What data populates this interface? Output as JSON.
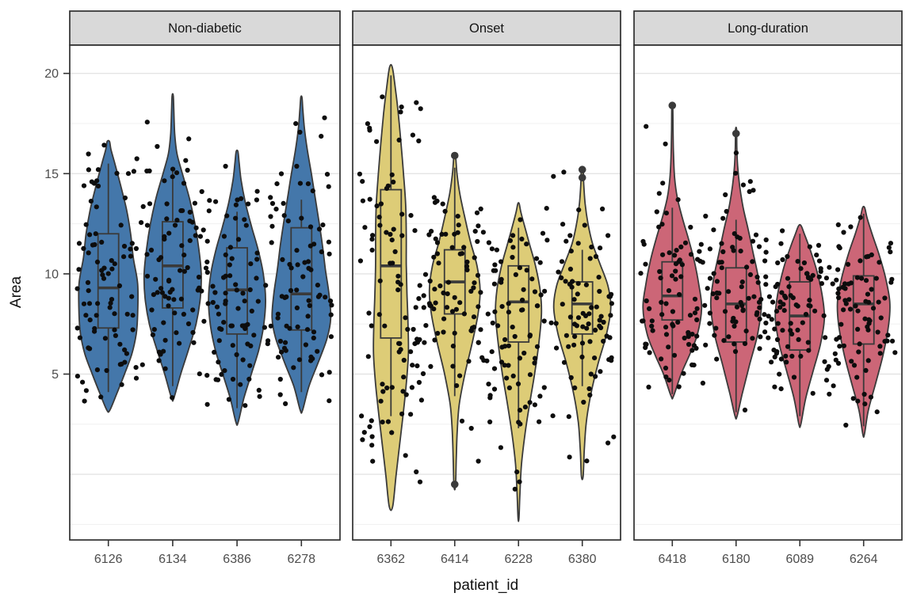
{
  "chart_data": {
    "type": "violin",
    "xlabel": "patient_id",
    "ylabel": "Area",
    "y_ticks": [
      20,
      15,
      10,
      5
    ],
    "y_grid_major": [
      0,
      5,
      10,
      15,
      20
    ],
    "y_grid_minor": [
      -2.5,
      2.5,
      7.5,
      12.5,
      17.5
    ],
    "legend": "none",
    "grid": "on",
    "facets": [
      {
        "label": "Non-diabetic",
        "fill": "#4477AA",
        "patients": [
          {
            "id": "6126",
            "seed": 11,
            "n_points": 85,
            "halfwidth": 37,
            "box": {
              "q1": 7.3,
              "median": 9.3,
              "q3": 12.0,
              "whisker_low": 4.1,
              "whisker_high": 15.5
            },
            "outliers": [],
            "violin": [
              [
                3.2,
                0.05
              ],
              [
                4.0,
                0.28
              ],
              [
                5.0,
                0.55
              ],
              [
                6.0,
                0.8
              ],
              [
                7.0,
                0.95
              ],
              [
                8.0,
                1.0
              ],
              [
                9.5,
                1.0
              ],
              [
                10.8,
                0.85
              ],
              [
                12.0,
                0.76
              ],
              [
                13.2,
                0.62
              ],
              [
                14.4,
                0.42
              ],
              [
                15.5,
                0.22
              ],
              [
                16.2,
                0.09
              ],
              [
                16.6,
                0.04
              ]
            ]
          },
          {
            "id": "6134",
            "seed": 22,
            "n_points": 85,
            "halfwidth": 36,
            "box": {
              "q1": 8.3,
              "median": 10.4,
              "q3": 12.6,
              "whisker_low": 4.4,
              "whisker_high": 15.2
            },
            "outliers": [],
            "violin": [
              [
                3.8,
                0.04
              ],
              [
                5.0,
                0.28
              ],
              [
                6.2,
                0.55
              ],
              [
                7.5,
                0.82
              ],
              [
                8.8,
                0.97
              ],
              [
                10.0,
                1.0
              ],
              [
                11.2,
                0.92
              ],
              [
                12.5,
                0.78
              ],
              [
                13.8,
                0.58
              ],
              [
                15.0,
                0.34
              ],
              [
                16.0,
                0.15
              ],
              [
                17.0,
                0.07
              ],
              [
                18.2,
                0.04
              ],
              [
                18.9,
                0.02
              ]
            ]
          },
          {
            "id": "6386",
            "seed": 33,
            "n_points": 85,
            "halfwidth": 36,
            "box": {
              "q1": 7.0,
              "median": 9.2,
              "q3": 11.3,
              "whisker_low": 3.3,
              "whisker_high": 13.1
            },
            "outliers": [],
            "violin": [
              [
                2.6,
                0.04
              ],
              [
                3.8,
                0.24
              ],
              [
                5.0,
                0.5
              ],
              [
                6.2,
                0.76
              ],
              [
                7.4,
                0.93
              ],
              [
                8.7,
                1.0
              ],
              [
                10.0,
                0.92
              ],
              [
                11.2,
                0.74
              ],
              [
                12.3,
                0.52
              ],
              [
                13.5,
                0.3
              ],
              [
                14.7,
                0.14
              ],
              [
                15.6,
                0.07
              ],
              [
                16.1,
                0.03
              ]
            ]
          },
          {
            "id": "6278",
            "seed": 44,
            "n_points": 85,
            "halfwidth": 37,
            "box": {
              "q1": 7.2,
              "median": 9.0,
              "q3": 12.3,
              "whisker_low": 4.1,
              "whisker_high": 13.7
            },
            "outliers": [],
            "violin": [
              [
                3.2,
                0.04
              ],
              [
                4.4,
                0.26
              ],
              [
                5.6,
                0.58
              ],
              [
                6.8,
                0.88
              ],
              [
                7.8,
                1.0
              ],
              [
                9.0,
                0.94
              ],
              [
                10.2,
                0.82
              ],
              [
                11.4,
                0.72
              ],
              [
                12.6,
                0.6
              ],
              [
                13.8,
                0.47
              ],
              [
                15.0,
                0.34
              ],
              [
                16.2,
                0.2
              ],
              [
                17.3,
                0.1
              ],
              [
                18.2,
                0.05
              ],
              [
                18.8,
                0.02
              ]
            ]
          }
        ]
      },
      {
        "label": "Onset",
        "fill": "#DDCC77",
        "patients": [
          {
            "id": "6362",
            "seed": 55,
            "n_points": 95,
            "halfwidth": 22,
            "box": {
              "q1": 6.8,
              "median": 10.4,
              "q3": 14.2,
              "whisker_low": 2.9,
              "whisker_high": 19.9
            },
            "outliers": [],
            "violin": [
              [
                -1.6,
                0.1
              ],
              [
                0.0,
                0.3
              ],
              [
                1.5,
                0.5
              ],
              [
                3.0,
                0.7
              ],
              [
                4.5,
                0.88
              ],
              [
                6.0,
                1.0
              ],
              [
                7.5,
                0.98
              ],
              [
                9.0,
                0.92
              ],
              [
                10.5,
                0.88
              ],
              [
                12.0,
                0.88
              ],
              [
                13.5,
                0.84
              ],
              [
                15.0,
                0.72
              ],
              [
                16.5,
                0.58
              ],
              [
                18.0,
                0.42
              ],
              [
                19.2,
                0.26
              ],
              [
                20.3,
                0.08
              ]
            ]
          },
          {
            "id": "6414",
            "seed": 66,
            "n_points": 85,
            "halfwidth": 32,
            "box": {
              "q1": 8.0,
              "median": 9.6,
              "q3": 11.2,
              "whisker_low": 3.9,
              "whisker_high": 15.3
            },
            "outliers": [
              15.9,
              -0.5
            ],
            "violin": [
              [
                -0.6,
                0.03
              ],
              [
                0.8,
                0.06
              ],
              [
                2.2,
                0.1
              ],
              [
                3.5,
                0.18
              ],
              [
                5.0,
                0.4
              ],
              [
                6.5,
                0.68
              ],
              [
                8.0,
                0.92
              ],
              [
                9.2,
                1.0
              ],
              [
                10.4,
                0.88
              ],
              [
                11.6,
                0.62
              ],
              [
                12.8,
                0.4
              ],
              [
                14.0,
                0.2
              ],
              [
                15.0,
                0.09
              ],
              [
                15.9,
                0.03
              ]
            ]
          },
          {
            "id": "6228",
            "seed": 77,
            "n_points": 85,
            "halfwidth": 29,
            "box": {
              "q1": 6.6,
              "median": 8.6,
              "q3": 10.4,
              "whisker_low": 2.3,
              "whisker_high": 12.3
            },
            "outliers": [],
            "violin": [
              [
                -2.2,
                0.02
              ],
              [
                -1.0,
                0.06
              ],
              [
                0.5,
                0.13
              ],
              [
                2.0,
                0.28
              ],
              [
                3.5,
                0.48
              ],
              [
                5.0,
                0.7
              ],
              [
                6.5,
                0.88
              ],
              [
                8.0,
                1.0
              ],
              [
                9.2,
                0.94
              ],
              [
                10.4,
                0.74
              ],
              [
                11.4,
                0.5
              ],
              [
                12.4,
                0.26
              ],
              [
                13.1,
                0.1
              ],
              [
                13.5,
                0.03
              ]
            ]
          },
          {
            "id": "6380",
            "seed": 88,
            "n_points": 85,
            "halfwidth": 36,
            "box": {
              "q1": 7.0,
              "median": 8.5,
              "q3": 9.6,
              "whisker_low": 4.4,
              "whisker_high": 11.2
            },
            "outliers": [
              14.8,
              15.2
            ],
            "violin": [
              [
                -0.1,
                0.03
              ],
              [
                1.2,
                0.07
              ],
              [
                2.6,
                0.14
              ],
              [
                4.0,
                0.3
              ],
              [
                5.5,
                0.55
              ],
              [
                7.0,
                0.85
              ],
              [
                8.3,
                1.0
              ],
              [
                9.4,
                0.9
              ],
              [
                10.5,
                0.62
              ],
              [
                11.5,
                0.36
              ],
              [
                12.5,
                0.2
              ],
              [
                13.5,
                0.1
              ],
              [
                14.5,
                0.05
              ],
              [
                15.2,
                0.03
              ]
            ]
          }
        ]
      },
      {
        "label": "Long-duration",
        "fill": "#CC6677",
        "patients": [
          {
            "id": "6418",
            "seed": 99,
            "n_points": 85,
            "halfwidth": 37,
            "box": {
              "q1": 7.7,
              "median": 8.9,
              "q3": 10.6,
              "whisker_low": 4.0,
              "whisker_high": 13.3
            },
            "outliers": [
              18.4
            ],
            "violin": [
              [
                3.9,
                0.04
              ],
              [
                5.0,
                0.3
              ],
              [
                6.0,
                0.6
              ],
              [
                7.0,
                0.86
              ],
              [
                8.3,
                1.0
              ],
              [
                9.5,
                0.9
              ],
              [
                10.7,
                0.74
              ],
              [
                11.8,
                0.54
              ],
              [
                12.8,
                0.34
              ],
              [
                13.8,
                0.17
              ],
              [
                14.8,
                0.08
              ],
              [
                16.0,
                0.04
              ],
              [
                17.2,
                0.025
              ],
              [
                18.4,
                0.015
              ]
            ]
          },
          {
            "id": "6180",
            "seed": 111,
            "n_points": 85,
            "halfwidth": 32,
            "box": {
              "q1": 6.6,
              "median": 8.5,
              "q3": 10.3,
              "whisker_low": 3.1,
              "whisker_high": 12.7
            },
            "outliers": [
              17.0
            ],
            "violin": [
              [
                2.9,
                0.04
              ],
              [
                4.0,
                0.24
              ],
              [
                5.5,
                0.54
              ],
              [
                7.0,
                0.85
              ],
              [
                8.5,
                1.0
              ],
              [
                9.8,
                0.88
              ],
              [
                11.0,
                0.68
              ],
              [
                12.2,
                0.48
              ],
              [
                13.3,
                0.28
              ],
              [
                14.4,
                0.14
              ],
              [
                15.4,
                0.06
              ],
              [
                16.3,
                0.03
              ],
              [
                17.2,
                0.02
              ]
            ]
          },
          {
            "id": "6089",
            "seed": 122,
            "n_points": 85,
            "halfwidth": 31,
            "box": {
              "q1": 6.2,
              "median": 7.9,
              "q3": 9.6,
              "whisker_low": 2.9,
              "whisker_high": 12.0
            },
            "outliers": [],
            "violin": [
              [
                2.5,
                0.04
              ],
              [
                3.8,
                0.24
              ],
              [
                5.2,
                0.55
              ],
              [
                6.5,
                0.84
              ],
              [
                7.8,
                1.0
              ],
              [
                9.0,
                0.9
              ],
              [
                10.2,
                0.68
              ],
              [
                11.2,
                0.42
              ],
              [
                12.0,
                0.18
              ],
              [
                12.4,
                0.05
              ]
            ]
          },
          {
            "id": "6264",
            "seed": 133,
            "n_points": 85,
            "halfwidth": 33,
            "box": {
              "q1": 6.5,
              "median": 8.5,
              "q3": 9.9,
              "whisker_low": 2.4,
              "whisker_high": 13.0
            },
            "outliers": [],
            "violin": [
              [
                2.0,
                0.03
              ],
              [
                3.2,
                0.18
              ],
              [
                4.5,
                0.45
              ],
              [
                6.0,
                0.75
              ],
              [
                7.5,
                0.96
              ],
              [
                8.6,
                1.0
              ],
              [
                9.8,
                0.84
              ],
              [
                11.0,
                0.58
              ],
              [
                12.0,
                0.32
              ],
              [
                12.8,
                0.13
              ],
              [
                13.3,
                0.04
              ]
            ]
          }
        ]
      }
    ],
    "style": {
      "strip_fill": "#D9D9D9",
      "strip_text": "#141414",
      "panel_border": "#2F2F2F",
      "grid_major": "#E4E4E4",
      "grid_minor": "#F0F0F0",
      "geom_stroke": "#3A3A3A",
      "point_color": "#0D0D0D",
      "axis_text": "#4D4D4D",
      "axis_title": "#111111"
    }
  }
}
